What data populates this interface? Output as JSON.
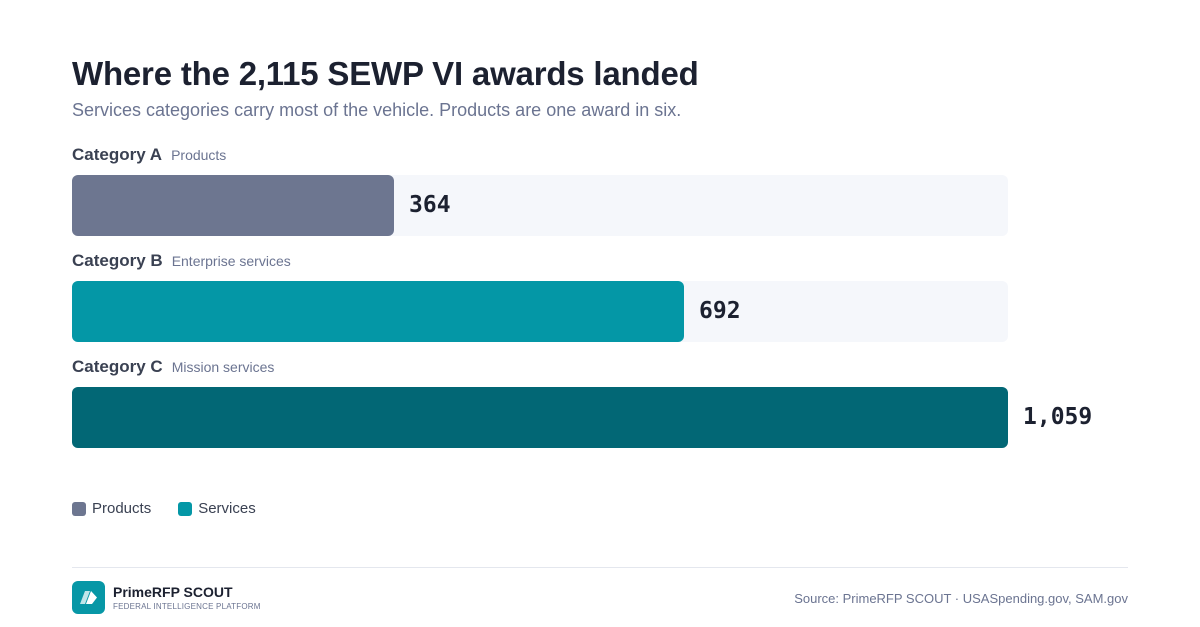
{
  "header": {
    "title": "Where the 2,115 SEWP VI awards landed",
    "subtitle": "Services categories carry most of the vehicle. Products are one award in six."
  },
  "colors": {
    "products": "#6d7690",
    "enterprise_services": "#0497a6",
    "mission_services": "#026775",
    "track": "#f5f7fb"
  },
  "chart_data": {
    "type": "bar",
    "orientation": "horizontal",
    "categories": [
      "Category A",
      "Category B",
      "Category C"
    ],
    "category_descriptions": [
      "Products",
      "Enterprise services",
      "Mission services"
    ],
    "values": [
      364,
      692,
      1059
    ],
    "value_labels": [
      "364",
      "692",
      "1,059"
    ],
    "series_groups": [
      "Products",
      "Services",
      "Services"
    ],
    "legend": [
      {
        "label": "Products",
        "color": "#6d7690"
      },
      {
        "label": "Services",
        "color": "#0497a6"
      }
    ],
    "legend_position": "bottom-left",
    "xlim": [
      0,
      1059
    ],
    "grid": false
  },
  "footer": {
    "brand_name": "PrimeRFP SCOUT",
    "brand_tagline": "FEDERAL INTELLIGENCE PLATFORM",
    "source": "Source: PrimeRFP SCOUT · USASpending.gov, SAM.gov",
    "logo_icon": "chevron-arrow-icon"
  }
}
